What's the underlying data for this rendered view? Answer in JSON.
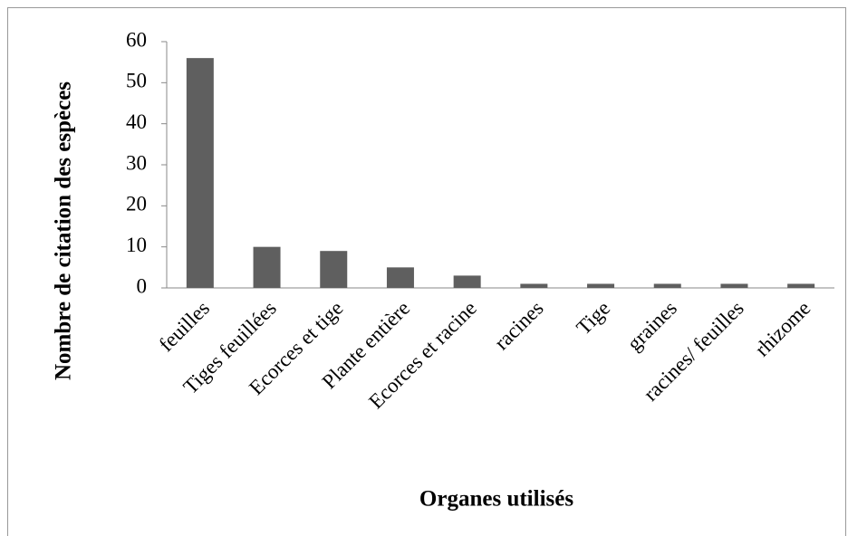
{
  "chart_data": {
    "type": "bar",
    "xlabel": "Organes utilisés",
    "ylabel": "Nombre de citation des espèces",
    "categories": [
      "feuilles",
      "Tiges feuillées",
      "Ecorces et tige",
      "Plante entière",
      "Ecorces et racine",
      "racines",
      "Tige",
      "graines",
      "racines/ feuilles",
      "rhizome"
    ],
    "values": [
      56,
      10,
      9,
      5,
      3,
      1,
      1,
      1,
      1,
      1
    ],
    "color": "#5f5f5f",
    "ylim": [
      0,
      60
    ],
    "yticks": [
      0,
      10,
      20,
      30,
      40,
      50,
      60
    ],
    "grid": false
  }
}
